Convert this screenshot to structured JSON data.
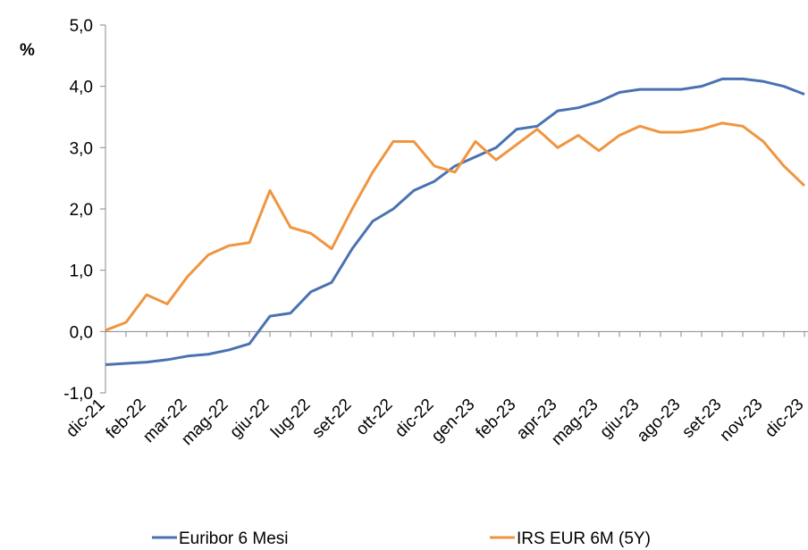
{
  "chart_data": {
    "type": "line",
    "y_label": "%",
    "categories": [
      "dic-21",
      null,
      "feb-22",
      null,
      "mar-22",
      null,
      "mag-22",
      null,
      "giu-22",
      null,
      "lug-22",
      null,
      "set-22",
      null,
      "ott-22",
      null,
      "dic-22",
      null,
      "gen-23",
      null,
      "feb-23",
      null,
      "apr-23",
      null,
      "mag-23",
      null,
      "giu-23",
      null,
      "ago-23",
      null,
      "set-23",
      null,
      "nov-23",
      null,
      "dic-23"
    ],
    "series": [
      {
        "name": "Euribor 6 Mesi",
        "color": "#4a72b0",
        "values": [
          -0.54,
          -0.52,
          -0.5,
          -0.46,
          -0.4,
          -0.37,
          -0.3,
          -0.2,
          0.25,
          0.3,
          0.65,
          0.8,
          1.35,
          1.8,
          2.0,
          2.3,
          2.45,
          2.7,
          2.85,
          3.0,
          3.3,
          3.35,
          3.6,
          3.65,
          3.75,
          3.9,
          3.95,
          3.95,
          3.95,
          4.0,
          4.12,
          4.12,
          4.08,
          4.0,
          3.87
        ]
      },
      {
        "name": "IRS EUR 6M (5Y)",
        "color": "#f0953f",
        "values": [
          0.02,
          0.15,
          0.6,
          0.45,
          0.9,
          1.25,
          1.4,
          1.45,
          2.3,
          1.7,
          1.6,
          1.35,
          2.0,
          2.6,
          3.1,
          3.1,
          2.7,
          2.6,
          3.1,
          2.8,
          3.05,
          3.3,
          3.0,
          3.2,
          2.95,
          3.2,
          3.35,
          3.25,
          3.25,
          3.3,
          3.4,
          3.35,
          3.1,
          2.7,
          2.38
        ]
      }
    ],
    "ylim": [
      -1,
      5
    ],
    "yticks": [
      {
        "value": -1,
        "label": "-1,0"
      },
      {
        "value": 0,
        "label": "0,0"
      },
      {
        "value": 1,
        "label": "1,0"
      },
      {
        "value": 2,
        "label": "2,0"
      },
      {
        "value": 3,
        "label": "3,0"
      },
      {
        "value": 4,
        "label": "4,0"
      },
      {
        "value": 5,
        "label": "5,0"
      }
    ]
  }
}
